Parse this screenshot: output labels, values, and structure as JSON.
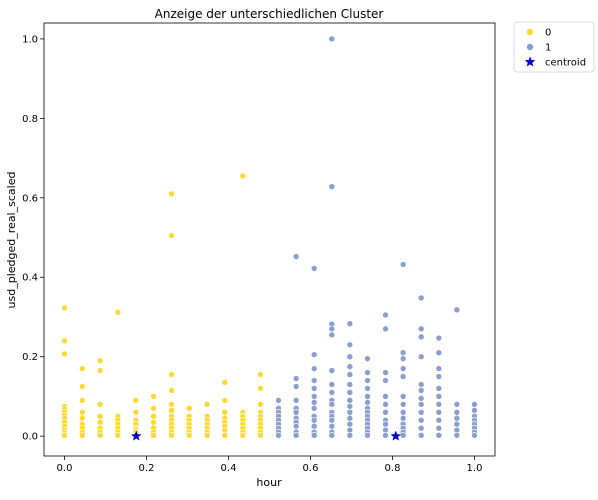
{
  "chart_data": {
    "type": "scatter",
    "title": "Anzeige der unterschiedlichen Cluster",
    "xlabel": "hour",
    "ylabel": "usd_pledged_real_scaled",
    "xlim": [
      -0.05,
      1.05
    ],
    "ylim": [
      -0.05,
      1.04
    ],
    "xticks": [
      "0.0",
      "0.2",
      "0.4",
      "0.6",
      "0.8",
      "1.0"
    ],
    "yticks": [
      "0.0",
      "0.2",
      "0.4",
      "0.6",
      "0.8",
      "1.0"
    ],
    "grid": false,
    "legend_position": "outside-top-right",
    "legend": [
      "0",
      "1",
      "centroid"
    ],
    "colors": {
      "cluster0": "#fdd835",
      "cluster1": "#8a9fcf",
      "centroid": "#0000cc"
    },
    "series": [
      {
        "name": "0",
        "marker": "circle",
        "x": [
          0,
          0,
          0,
          0,
          0,
          0,
          0,
          0,
          0,
          0,
          0,
          0,
          0,
          0.0435,
          0.0435,
          0.0435,
          0.0435,
          0.0435,
          0.0435,
          0.0435,
          0.0435,
          0.0435,
          0.087,
          0.087,
          0.087,
          0.087,
          0.087,
          0.087,
          0.087,
          0.087,
          0.13,
          0.13,
          0.13,
          0.13,
          0.13,
          0.13,
          0.13,
          0.174,
          0.174,
          0.174,
          0.174,
          0.174,
          0.174,
          0.174,
          0.174,
          0.217,
          0.217,
          0.217,
          0.217,
          0.217,
          0.217,
          0.217,
          0.261,
          0.261,
          0.261,
          0.261,
          0.261,
          0.261,
          0.261,
          0.261,
          0.261,
          0.261,
          0.261,
          0.261,
          0.304,
          0.304,
          0.304,
          0.304,
          0.304,
          0.304,
          0.304,
          0.348,
          0.348,
          0.348,
          0.348,
          0.348,
          0.348,
          0.348,
          0.391,
          0.391,
          0.391,
          0.391,
          0.391,
          0.391,
          0.391,
          0.391,
          0.435,
          0.435,
          0.435,
          0.435,
          0.435,
          0.435,
          0.435,
          0.435,
          0.478,
          0.478,
          0.478,
          0.478,
          0.478,
          0.478,
          0.478,
          0.478,
          0.478,
          0.478
        ],
        "y": [
          0.323,
          0.24,
          0.207,
          0.075,
          0.068,
          0.06,
          0.052,
          0.045,
          0.035,
          0.025,
          0.015,
          0.008,
          0.002,
          0.17,
          0.125,
          0.09,
          0.06,
          0.045,
          0.03,
          0.02,
          0.01,
          0.002,
          0.19,
          0.165,
          0.08,
          0.05,
          0.035,
          0.02,
          0.01,
          0.002,
          0.312,
          0.05,
          0.04,
          0.03,
          0.02,
          0.01,
          0.002,
          0.09,
          0.06,
          0.04,
          0.03,
          0.02,
          0.015,
          0.01,
          0.002,
          0.1,
          0.07,
          0.05,
          0.035,
          0.02,
          0.01,
          0.002,
          0.61,
          0.505,
          0.155,
          0.115,
          0.08,
          0.065,
          0.05,
          0.04,
          0.03,
          0.02,
          0.01,
          0.002,
          0.07,
          0.05,
          0.04,
          0.03,
          0.02,
          0.01,
          0.002,
          0.08,
          0.05,
          0.04,
          0.03,
          0.02,
          0.01,
          0.002,
          0.135,
          0.09,
          0.06,
          0.045,
          0.035,
          0.025,
          0.015,
          0.002,
          0.655,
          0.06,
          0.05,
          0.04,
          0.03,
          0.02,
          0.01,
          0.002,
          0.155,
          0.12,
          0.08,
          0.06,
          0.05,
          0.04,
          0.03,
          0.02,
          0.01,
          0.002
        ]
      },
      {
        "name": "1",
        "marker": "circle",
        "x": [
          0.522,
          0.522,
          0.522,
          0.522,
          0.522,
          0.522,
          0.522,
          0.522,
          0.522,
          0.565,
          0.565,
          0.565,
          0.565,
          0.565,
          0.565,
          0.565,
          0.565,
          0.565,
          0.565,
          0.565,
          0.609,
          0.609,
          0.609,
          0.609,
          0.609,
          0.609,
          0.609,
          0.609,
          0.609,
          0.609,
          0.609,
          0.609,
          0.609,
          0.652,
          0.652,
          0.652,
          0.652,
          0.652,
          0.652,
          0.652,
          0.652,
          0.652,
          0.652,
          0.652,
          0.652,
          0.652,
          0.652,
          0.652,
          0.652,
          0.696,
          0.696,
          0.696,
          0.696,
          0.696,
          0.696,
          0.696,
          0.696,
          0.696,
          0.696,
          0.696,
          0.696,
          0.696,
          0.696,
          0.739,
          0.739,
          0.739,
          0.739,
          0.739,
          0.739,
          0.739,
          0.739,
          0.739,
          0.739,
          0.739,
          0.739,
          0.739,
          0.739,
          0.783,
          0.783,
          0.783,
          0.783,
          0.783,
          0.783,
          0.783,
          0.783,
          0.783,
          0.783,
          0.783,
          0.826,
          0.826,
          0.826,
          0.826,
          0.826,
          0.826,
          0.826,
          0.826,
          0.826,
          0.826,
          0.826,
          0.826,
          0.826,
          0.87,
          0.87,
          0.87,
          0.87,
          0.87,
          0.87,
          0.87,
          0.87,
          0.87,
          0.87,
          0.87,
          0.87,
          0.913,
          0.913,
          0.913,
          0.913,
          0.913,
          0.913,
          0.913,
          0.913,
          0.913,
          0.913,
          0.913,
          0.957,
          0.957,
          0.957,
          0.957,
          0.957,
          0.957,
          0.957,
          1,
          1,
          1,
          1,
          1,
          1,
          1,
          1
        ],
        "y": [
          0.09,
          0.07,
          0.06,
          0.05,
          0.04,
          0.03,
          0.02,
          0.01,
          0.002,
          0.452,
          0.145,
          0.125,
          0.09,
          0.07,
          0.06,
          0.045,
          0.035,
          0.025,
          0.01,
          0.002,
          0.422,
          0.205,
          0.17,
          0.14,
          0.12,
          0.1,
          0.085,
          0.07,
          0.05,
          0.04,
          0.025,
          0.01,
          0.002,
          1.0,
          0.628,
          0.282,
          0.27,
          0.255,
          0.165,
          0.13,
          0.11,
          0.09,
          0.08,
          0.06,
          0.05,
          0.04,
          0.025,
          0.01,
          0.002,
          0.283,
          0.23,
          0.2,
          0.175,
          0.155,
          0.13,
          0.11,
          0.09,
          0.075,
          0.06,
          0.045,
          0.03,
          0.015,
          0.002,
          0.195,
          0.16,
          0.14,
          0.12,
          0.1,
          0.085,
          0.07,
          0.06,
          0.05,
          0.04,
          0.03,
          0.02,
          0.01,
          0.002,
          0.305,
          0.27,
          0.16,
          0.14,
          0.1,
          0.08,
          0.06,
          0.04,
          0.03,
          0.015,
          0.002,
          0.432,
          0.21,
          0.195,
          0.17,
          0.15,
          0.1,
          0.08,
          0.06,
          0.045,
          0.03,
          0.02,
          0.01,
          0.002,
          0.348,
          0.27,
          0.25,
          0.2,
          0.13,
          0.115,
          0.095,
          0.08,
          0.06,
          0.04,
          0.02,
          0.002,
          0.247,
          0.21,
          0.17,
          0.15,
          0.12,
          0.1,
          0.08,
          0.06,
          0.04,
          0.02,
          0.002,
          0.318,
          0.08,
          0.06,
          0.045,
          0.03,
          0.015,
          0.002,
          0.08,
          0.065,
          0.05,
          0.04,
          0.03,
          0.02,
          0.01,
          0.002
        ]
      },
      {
        "name": "centroid",
        "marker": "star",
        "x": [
          0.175,
          0.808
        ],
        "y": [
          0.0,
          0.0
        ]
      }
    ]
  }
}
